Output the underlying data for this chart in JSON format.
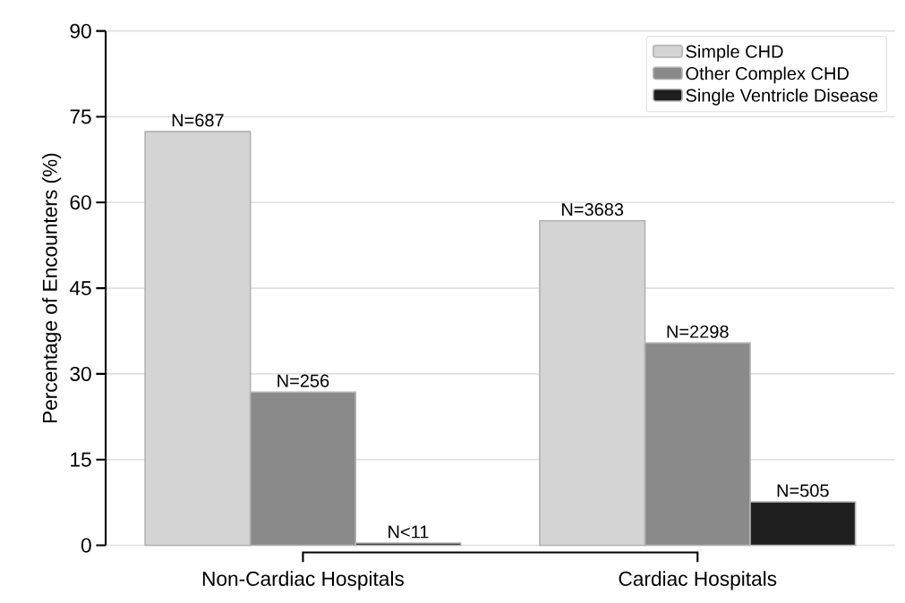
{
  "chart_data": {
    "type": "bar",
    "ylabel": "Percentage of Encounters (%)",
    "categories": [
      "Non-Cardiac Hospitals",
      "Cardiac Hospitals"
    ],
    "series": [
      {
        "name": "Simple CHD",
        "color": "#d4d4d4",
        "values": [
          72.4,
          56.8
        ]
      },
      {
        "name": "Other Complex CHD",
        "color": "#8a8a8a",
        "values": [
          26.8,
          35.4
        ]
      },
      {
        "name": "Single Ventricle Disease",
        "color": "#1e1e1e",
        "values": [
          0.4,
          7.6
        ]
      }
    ],
    "annotations": [
      "N=687",
      "N=3683",
      "N=256",
      "N=2298",
      "N<11",
      "N=505"
    ],
    "ylim": [
      0,
      90
    ],
    "yticks": [
      0,
      15,
      30,
      45,
      60,
      75,
      90
    ],
    "grid": "y",
    "legend": "top right"
  }
}
